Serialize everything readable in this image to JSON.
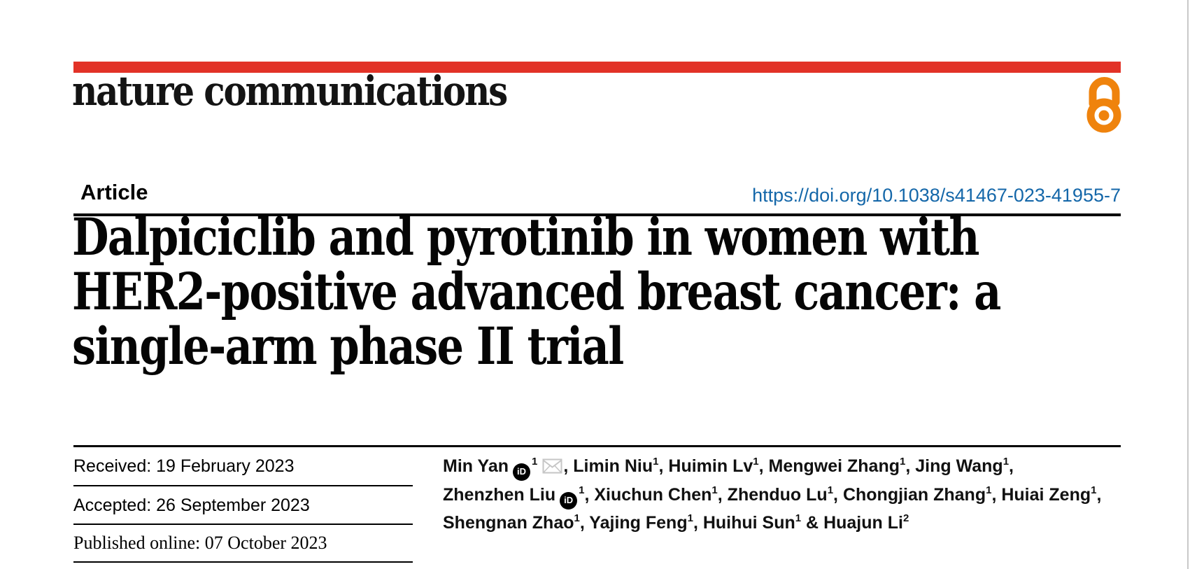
{
  "brand": {
    "wordmark": "nature communications",
    "accent_red": "#e23227",
    "open_access_orange": "#ef830d",
    "icons": {
      "open_access": "open-padlock-a-shape",
      "orcid": "black-circle-iD-badge",
      "email": "gray-envelope"
    }
  },
  "header": {
    "article_type": "Article",
    "doi": "https://doi.org/10.1038/s41467-023-41955-7",
    "doi_color": "#1467a9"
  },
  "title": {
    "lines": [
      "Dalpiciclib and pyrotinib in women with",
      "HER2-positive advanced breast cancer: a",
      "single-arm phase II trial"
    ]
  },
  "history": {
    "received": "Received: 19 February 2023",
    "accepted": "Accepted: 26 September 2023",
    "published": "Published online: 07 October 2023"
  },
  "authors": {
    "orcid_label": "iD",
    "lines": [
      [
        {
          "name": "Min Yan",
          "orcid": true,
          "sup": "1",
          "email": true,
          "sep": ","
        },
        {
          "name": "Limin Niu",
          "sup": "1",
          "sep": ","
        },
        {
          "name": "Huimin Lv",
          "sup": "1",
          "sep": ","
        },
        {
          "name": "Mengwei Zhang",
          "sup": "1",
          "sep": ","
        },
        {
          "name": "Jing Wang",
          "sup": "1",
          "sep": ","
        }
      ],
      [
        {
          "name": "Zhenzhen Liu",
          "orcid": true,
          "sup": "1",
          "sep": ","
        },
        {
          "name": "Xiuchun Chen",
          "sup": "1",
          "sep": ","
        },
        {
          "name": "Zhenduo Lu",
          "sup": "1",
          "sep": ","
        },
        {
          "name": "Chongjian Zhang",
          "sup": "1",
          "sep": ","
        },
        {
          "name": "Huiai Zeng",
          "sup": "1",
          "sep": ","
        }
      ],
      [
        {
          "name": "Shengnan Zhao",
          "sup": "1",
          "sep": ","
        },
        {
          "name": "Yajing Feng",
          "sup": "1",
          "sep": ","
        },
        {
          "name": "Huihui Sun",
          "sup": "1",
          "sep": " &"
        },
        {
          "name": "Huajun Li",
          "sup": "2",
          "sep": ""
        }
      ]
    ]
  }
}
